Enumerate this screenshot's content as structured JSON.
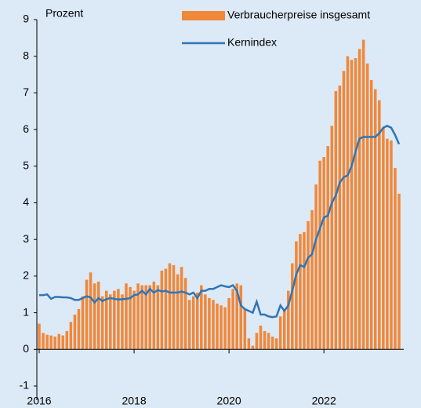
{
  "chart_data": {
    "type": "bar_line",
    "y_label": "Prozent",
    "x": [
      2016,
      2016.083,
      2016.167,
      2016.25,
      2016.333,
      2016.417,
      2016.5,
      2016.583,
      2016.667,
      2016.75,
      2016.833,
      2016.917,
      2017,
      2017.083,
      2017.167,
      2017.25,
      2017.333,
      2017.417,
      2017.5,
      2017.583,
      2017.667,
      2017.75,
      2017.833,
      2017.917,
      2018,
      2018.083,
      2018.167,
      2018.25,
      2018.333,
      2018.417,
      2018.5,
      2018.583,
      2018.667,
      2018.75,
      2018.833,
      2018.917,
      2019,
      2019.083,
      2019.167,
      2019.25,
      2019.333,
      2019.417,
      2019.5,
      2019.583,
      2019.667,
      2019.75,
      2019.833,
      2019.917,
      2020,
      2020.083,
      2020.167,
      2020.25,
      2020.333,
      2020.417,
      2020.5,
      2020.583,
      2020.667,
      2020.75,
      2020.833,
      2020.917,
      2021,
      2021.083,
      2021.167,
      2021.25,
      2021.333,
      2021.417,
      2021.5,
      2021.583,
      2021.667,
      2021.75,
      2021.833,
      2021.917,
      2022,
      2022.083,
      2022.167,
      2022.25,
      2022.333,
      2022.417,
      2022.5,
      2022.583,
      2022.667,
      2022.75,
      2022.833,
      2022.917,
      2023,
      2023.083,
      2023.167,
      2023.25,
      2023.333,
      2023.417,
      2023.5,
      2023.583
    ],
    "series": [
      {
        "name": "Verbraucherpreise insgesamt",
        "kind": "bar",
        "color": "#f0883a",
        "values": [
          0.7,
          0.45,
          0.4,
          0.38,
          0.35,
          0.42,
          0.38,
          0.5,
          0.75,
          0.95,
          1.1,
          1.45,
          1.9,
          2.1,
          1.8,
          1.85,
          1.45,
          1.6,
          1.5,
          1.6,
          1.65,
          1.5,
          1.8,
          1.7,
          1.6,
          1.8,
          1.75,
          1.75,
          1.75,
          1.85,
          1.75,
          2.15,
          2.2,
          2.35,
          2.3,
          2.05,
          2.25,
          1.95,
          1.35,
          1.45,
          1.55,
          1.75,
          1.5,
          1.4,
          1.35,
          1.25,
          1.2,
          1.15,
          1.4,
          1.65,
          1.8,
          1.75,
          1.1,
          0.3,
          0.1,
          0.45,
          0.65,
          0.5,
          0.45,
          0.35,
          0.3,
          0.9,
          1.1,
          1.6,
          2.35,
          2.95,
          3.15,
          3.2,
          3.5,
          3.8,
          4.5,
          5.15,
          5.25,
          5.55,
          6.1,
          7.05,
          7.2,
          7.6,
          8.0,
          7.9,
          7.95,
          8.2,
          8.45,
          7.8,
          7.35,
          7.1,
          6.8,
          6.05,
          5.75,
          5.7,
          4.95,
          4.25
        ]
      },
      {
        "name": "Kernindex",
        "kind": "line",
        "color": "#2f75b5",
        "values": [
          1.48,
          1.48,
          1.5,
          1.38,
          1.43,
          1.43,
          1.42,
          1.42,
          1.4,
          1.35,
          1.35,
          1.4,
          1.45,
          1.42,
          1.28,
          1.4,
          1.32,
          1.37,
          1.4,
          1.38,
          1.36,
          1.37,
          1.38,
          1.4,
          1.48,
          1.5,
          1.6,
          1.5,
          1.65,
          1.55,
          1.62,
          1.58,
          1.6,
          1.55,
          1.55,
          1.55,
          1.58,
          1.55,
          1.5,
          1.55,
          1.4,
          1.6,
          1.6,
          1.65,
          1.65,
          1.7,
          1.75,
          1.72,
          1.7,
          1.75,
          1.6,
          1.2,
          1.1,
          1.05,
          1.0,
          1.3,
          0.95,
          0.95,
          0.9,
          0.88,
          0.9,
          1.2,
          1.05,
          1.2,
          1.6,
          2.05,
          2.3,
          2.25,
          2.5,
          2.6,
          3.0,
          3.3,
          3.6,
          3.65,
          4.0,
          4.2,
          4.55,
          4.7,
          4.75,
          5.0,
          5.4,
          5.75,
          5.8,
          5.8,
          5.8,
          5.8,
          5.9,
          6.05,
          6.1,
          6.05,
          5.85,
          5.6
        ]
      }
    ],
    "xlim": [
      2016,
      2023.583
    ],
    "xticks": [
      2016,
      2018,
      2020,
      2022
    ],
    "ylim": [
      -1,
      9
    ],
    "yticks": [
      -1,
      0,
      1,
      2,
      3,
      4,
      5,
      6,
      7,
      8,
      9
    ],
    "legend": "top-right"
  }
}
